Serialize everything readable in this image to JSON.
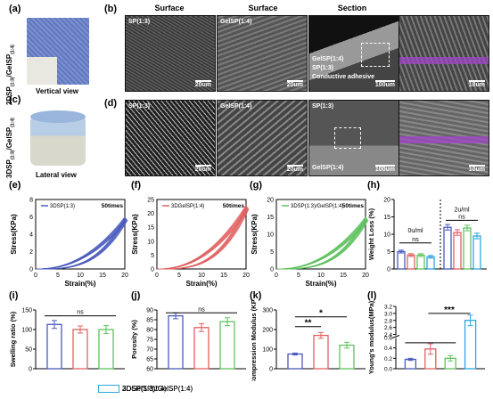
{
  "panels": {
    "a": {
      "label": "(a)",
      "side_label": "2DSP(1:3)/GelSP(1:4)",
      "view": "Vertical view"
    },
    "b": {
      "label": "(b)",
      "col_titles": [
        "Surface",
        "Surface",
        "Section"
      ],
      "images": [
        {
          "tag": "SP(1:3)",
          "scale": "20um"
        },
        {
          "tag": "GelSP(1:4)",
          "scale": "20um"
        },
        {
          "tag1": "GelSP(1:4)",
          "tag2": "SP(1:3)",
          "tag3": "Conductive adhesive",
          "scale": "100um"
        },
        {
          "scale": "10um"
        }
      ]
    },
    "c": {
      "label": "(c)",
      "side_label": "3DSP(1:3)/GelSP(1:4)",
      "view": "Lateral view"
    },
    "d": {
      "label": "(d)",
      "images": [
        {
          "tag": "SP(1:3)",
          "scale": "20um"
        },
        {
          "tag": "GelSP(1:4)",
          "scale": "20um"
        },
        {
          "tag1": "SP(1:3)",
          "tag2": "GelSP(1:4)",
          "scale": "100um"
        },
        {
          "scale": "10um"
        }
      ]
    },
    "e": {
      "label": "(e)"
    },
    "f": {
      "label": "(f)"
    },
    "g": {
      "label": "(g)"
    },
    "h": {
      "label": "(h)"
    },
    "i": {
      "label": "(i)"
    },
    "j": {
      "label": "(j)"
    },
    "k": {
      "label": "(k)"
    },
    "l": {
      "label": "(l)"
    }
  },
  "colors": {
    "blue": "#4a5bbd",
    "red": "#e06060",
    "green": "#5fc25f",
    "cyan": "#2aa8e0"
  },
  "legend": [
    "3DSP(1:3)",
    "3DGelSP(1:4)",
    "3DSP(1:3)/GelSP(1:4)",
    "2DSP(1:3)/GelSP(1:4)"
  ],
  "chart_data": [
    {
      "panel": "e",
      "type": "line",
      "series": [
        {
          "name": "3DSP(1:3)"
        }
      ],
      "annotation": "50times",
      "xlabel": "Strain(%)",
      "ylabel": "Stress(KPa)",
      "xlim": [
        0,
        20
      ],
      "ylim": [
        0,
        8
      ],
      "xticks": [
        "0",
        "5",
        "10",
        "15",
        "20"
      ],
      "yticks": [
        "0",
        "2",
        "4",
        "6",
        "8"
      ],
      "peak": 6.0
    },
    {
      "panel": "f",
      "type": "line",
      "series": [
        {
          "name": "3DGelSP(1:4)"
        }
      ],
      "annotation": "50times",
      "xlabel": "Strain(%)",
      "ylabel": "Stress(KPa)",
      "xlim": [
        0,
        20
      ],
      "ylim": [
        0,
        25
      ],
      "xticks": [
        "0",
        "5",
        "10",
        "15",
        "20"
      ],
      "yticks": [
        "0",
        "5",
        "10",
        "15",
        "20",
        "25"
      ],
      "peak": 23
    },
    {
      "panel": "g",
      "type": "line",
      "series": [
        {
          "name": "3DSP(1:3)/GelSP(1:4)"
        }
      ],
      "annotation": "50times",
      "xlabel": "Strain(%)",
      "ylabel": "Stress(KPa)",
      "xlim": [
        0,
        20
      ],
      "ylim": [
        0,
        20
      ],
      "xticks": [
        "0",
        "5",
        "10",
        "15",
        "20"
      ],
      "yticks": [
        "0",
        "5",
        "10",
        "15",
        "20"
      ],
      "peak": 15
    },
    {
      "panel": "h",
      "type": "bar",
      "ylabel": "Weight Loss (%)",
      "ylim": [
        0,
        20
      ],
      "yticks": [
        "0",
        "5",
        "10",
        "15",
        "20"
      ],
      "groups": [
        "0u/ml",
        "2u/ml"
      ],
      "sig": [
        "ns",
        "ns"
      ],
      "values": [
        [
          5.0,
          4.0,
          4.0,
          3.5
        ],
        [
          12.0,
          10.5,
          11.8,
          9.5
        ]
      ],
      "errors": [
        [
          0.4,
          0.4,
          0.4,
          0.4
        ],
        [
          0.8,
          0.8,
          0.8,
          0.8
        ]
      ]
    },
    {
      "panel": "i",
      "type": "bar",
      "ylabel": "Swelling ratio (%)",
      "ylim": [
        0,
        150
      ],
      "yticks": [
        "0",
        "50",
        "100",
        "150"
      ],
      "sig": [
        "ns"
      ],
      "values": [
        113,
        100,
        100
      ],
      "errors": [
        10,
        9,
        10
      ]
    },
    {
      "panel": "j",
      "type": "bar",
      "ylabel": "Porosity (%)",
      "ylim": [
        60,
        90
      ],
      "yticks": [
        "60",
        "65",
        "70",
        "75",
        "80",
        "85",
        "90"
      ],
      "sig": [
        "ns"
      ],
      "values": [
        87,
        81,
        84
      ],
      "errors": [
        1.5,
        2,
        2
      ]
    },
    {
      "panel": "k",
      "type": "bar",
      "ylabel": "Compression Modulus (KPa)",
      "ylim": [
        0,
        300
      ],
      "yticks": [
        "0",
        "100",
        "200",
        "300"
      ],
      "sig": [
        "**",
        "*"
      ],
      "values": [
        75,
        170,
        120
      ],
      "errors": [
        5,
        15,
        15
      ]
    },
    {
      "panel": "l",
      "type": "bar",
      "ylabel": "Young's modulus(MPa)",
      "ylim": [
        0,
        3.2
      ],
      "yticks": [
        "0.0",
        "0.2",
        "0.4",
        "0.6",
        "2.4",
        "2.6",
        "2.8",
        "3.0",
        "3.2"
      ],
      "sig": [
        "***"
      ],
      "values": [
        0.18,
        0.38,
        0.2,
        2.8
      ],
      "errors": [
        0.02,
        0.1,
        0.05,
        0.15
      ]
    }
  ]
}
